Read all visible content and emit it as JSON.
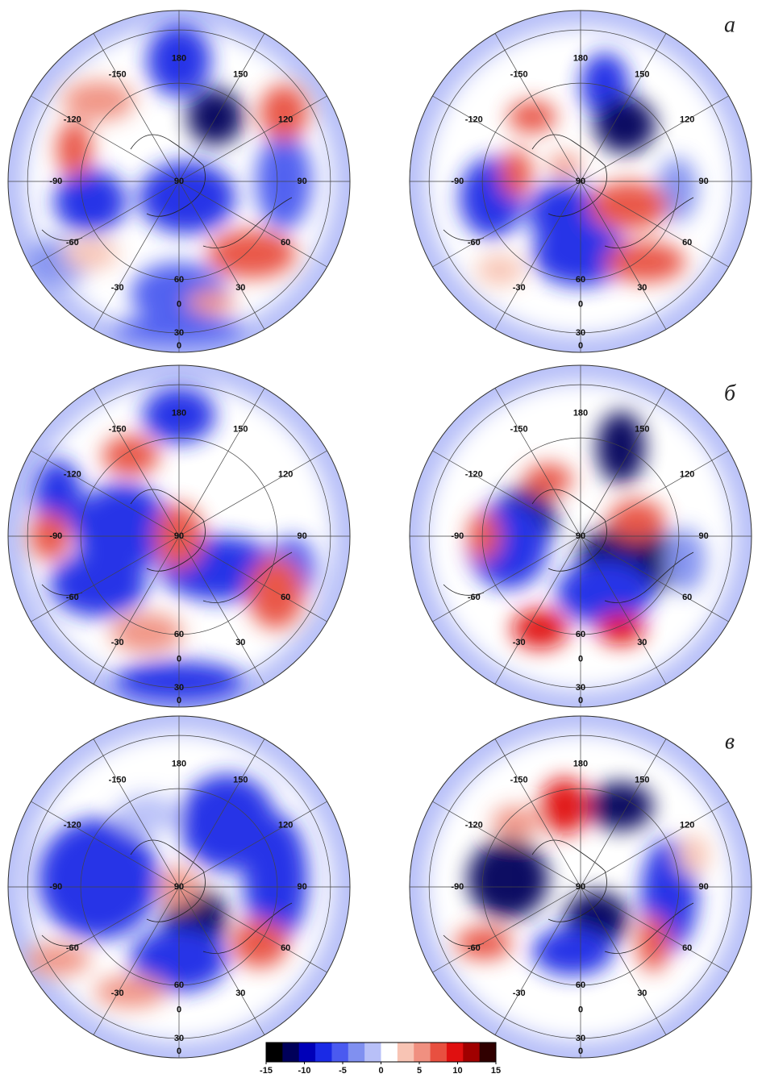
{
  "panel_labels": [
    "а",
    "б",
    "в"
  ],
  "map_labels": {
    "center": "90",
    "longitudes": [
      180,
      150,
      120,
      90,
      60,
      30,
      0,
      -30,
      -60,
      -90,
      -120,
      -150
    ],
    "latitudes": [
      60,
      30,
      0
    ]
  },
  "colorbar": {
    "lim": [
      -15,
      15
    ],
    "ticks": [
      -15,
      -10,
      -5,
      0,
      5,
      10,
      15
    ],
    "colors": [
      "#000000",
      "#00005a",
      "#0000b8",
      "#1a2ae6",
      "#4a5af0",
      "#8090f0",
      "#b8c0f8",
      "#ffffff",
      "#f8c4b4",
      "#f09080",
      "#e85040",
      "#e01010",
      "#a00000",
      "#300000"
    ]
  }
}
